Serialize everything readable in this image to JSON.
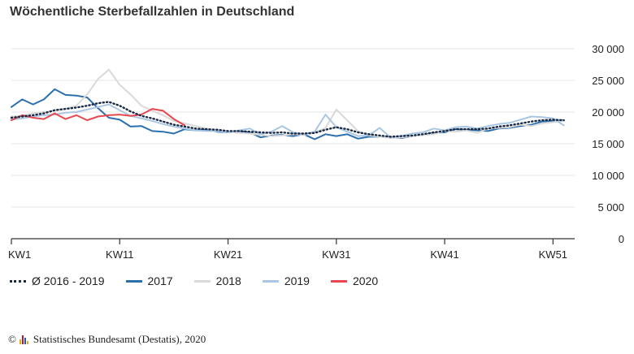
{
  "title": "Wöchentliche Sterbefallzahlen in Deutschland",
  "credit": {
    "copyright": "©",
    "text": "Statistisches Bundesamt (Destatis), 2020",
    "logo_colors": [
      "#e6a817",
      "#c8102e",
      "#1f5fa8",
      "#e6a817"
    ]
  },
  "chart_data": {
    "type": "line",
    "title": "Wöchentliche Sterbefallzahlen in Deutschland",
    "xlabel": "",
    "ylabel": "",
    "x": [
      1,
      2,
      3,
      4,
      5,
      6,
      7,
      8,
      9,
      10,
      11,
      12,
      13,
      14,
      15,
      16,
      17,
      18,
      19,
      20,
      21,
      22,
      23,
      24,
      25,
      26,
      27,
      28,
      29,
      30,
      31,
      32,
      33,
      34,
      35,
      36,
      37,
      38,
      39,
      40,
      41,
      42,
      43,
      44,
      45,
      46,
      47,
      48,
      49,
      50,
      51,
      52
    ],
    "x_ticks": [
      1,
      11,
      21,
      31,
      41,
      51
    ],
    "x_tick_labels": [
      "KW1",
      "KW11",
      "KW21",
      "KW31",
      "KW41",
      "KW51"
    ],
    "xlim": [
      1,
      53
    ],
    "ylim": [
      0,
      30000
    ],
    "y_ticks": [
      0,
      5000,
      10000,
      15000,
      20000,
      25000,
      30000
    ],
    "y_tick_labels": [
      "0",
      "5 000",
      "10 000",
      "15 000",
      "20 000",
      "25 000",
      "30 000"
    ],
    "y_axis_side": "right",
    "grid": true,
    "legend_position": "bottom-left",
    "series": [
      {
        "name": "2017",
        "color": "#2c6fad",
        "style": "solid",
        "values": [
          20800,
          22000,
          21200,
          22000,
          23600,
          22700,
          22600,
          22300,
          20600,
          19100,
          18800,
          17700,
          17800,
          17000,
          16900,
          16600,
          17300,
          17100,
          17300,
          16900,
          16800,
          17000,
          16800,
          16000,
          16300,
          16400,
          16200,
          16500,
          15700,
          16500,
          16200,
          16500,
          15800,
          16100,
          16100,
          16000,
          15900,
          16200,
          16400,
          16700,
          16800,
          17300,
          17200,
          17100,
          17000,
          17400,
          17500,
          17800,
          18000,
          18500,
          18600,
          18700
        ]
      },
      {
        "name": "2018",
        "color": "#d9d9d9",
        "style": "solid",
        "values": [
          19300,
          19400,
          19800,
          20000,
          20200,
          20500,
          21000,
          22800,
          25200,
          26700,
          24300,
          22800,
          21000,
          20200,
          19500,
          18600,
          18200,
          17800,
          17400,
          17100,
          16900,
          16700,
          16600,
          16400,
          16200,
          16300,
          16500,
          16400,
          16800,
          17500,
          20400,
          18700,
          17000,
          16300,
          16100,
          15900,
          16000,
          16200,
          16400,
          16500,
          17000,
          16900,
          17100,
          16700,
          17400,
          17500,
          17600,
          18000,
          17800,
          18200,
          18400,
          18600
        ]
      },
      {
        "name": "2019",
        "color": "#a9c6e3",
        "style": "solid",
        "values": [
          18800,
          19000,
          19300,
          19500,
          19600,
          19900,
          20000,
          20400,
          20800,
          21200,
          20300,
          19400,
          19000,
          18600,
          18100,
          17700,
          17400,
          17100,
          17000,
          17000,
          16800,
          17100,
          17400,
          16500,
          16900,
          17800,
          16800,
          16500,
          16900,
          19600,
          17600,
          16900,
          16200,
          16300,
          17500,
          16000,
          16200,
          16600,
          16800,
          17400,
          17100,
          17600,
          17700,
          17400,
          17800,
          18100,
          18300,
          18800,
          19300,
          19200,
          19000,
          17900
        ]
      },
      {
        "name": "2020",
        "color": "#e8474f",
        "style": "solid",
        "values": [
          18700,
          19500,
          19100,
          18900,
          19800,
          18900,
          19500,
          18700,
          19300,
          19500,
          19600,
          19400,
          19600,
          20500,
          20200,
          18900,
          17900,
          null,
          null,
          null,
          null,
          null,
          null,
          null,
          null,
          null,
          null,
          null,
          null,
          null,
          null,
          null,
          null,
          null,
          null,
          null,
          null,
          null,
          null,
          null,
          null,
          null,
          null,
          null,
          null,
          null,
          null,
          null,
          null,
          null,
          null,
          null
        ]
      },
      {
        "name": "Ø 2016 - 2019",
        "color": "#1a2a44",
        "style": "dotted",
        "values": [
          19100,
          19300,
          19500,
          19800,
          20300,
          20500,
          20700,
          21000,
          21400,
          21600,
          21000,
          20100,
          19400,
          19000,
          18500,
          18000,
          17700,
          17400,
          17300,
          17200,
          17000,
          17000,
          16900,
          16800,
          16700,
          16800,
          16600,
          16600,
          16700,
          17200,
          17600,
          17300,
          16800,
          16500,
          16300,
          16100,
          16200,
          16300,
          16500,
          16800,
          17000,
          17300,
          17300,
          17300,
          17400,
          17700,
          17900,
          18200,
          18500,
          18700,
          18800,
          18700
        ]
      }
    ],
    "legend_order": [
      "Ø 2016 - 2019",
      "2017",
      "2018",
      "2019",
      "2020"
    ]
  }
}
